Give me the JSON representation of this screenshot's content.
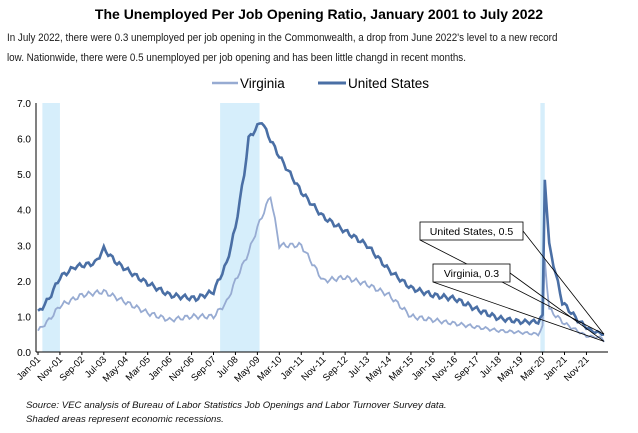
{
  "chart_data": {
    "type": "line",
    "title": "The Unemployed Per Job Opening Ratio, January 2001 to July 2022",
    "subtitle_lines": [
      "In July 2022, there were 0.3 unemployed per job opening in the Commonwealth, a drop from June 2022's level to a new record",
      "low. Nationwide, there were  0.5 unemployed per job opening and has been little changd in recent months."
    ],
    "ylim": [
      0,
      7
    ],
    "yticks": [
      "0.0",
      "1.0",
      "2.0",
      "3.0",
      "4.0",
      "5.0",
      "6.0",
      "7.0"
    ],
    "xticks": [
      "Jan-01",
      "Nov-01",
      "Sep-02",
      "Jul-03",
      "May-04",
      "Mar-05",
      "Jan-06",
      "Nov-06",
      "Sep-07",
      "Jul-08",
      "May-09",
      "Mar-10",
      "Jan-11",
      "Nov-11",
      "Sep-12",
      "Jul-13",
      "May-14",
      "Mar-15",
      "Jan-16",
      "Nov-16",
      "Sep-17",
      "Jul-18",
      "May-19",
      "Mar-20",
      "Jan-21",
      "Nov-21"
    ],
    "xrange": [
      "2001-01",
      "2022-07"
    ],
    "recessions": [
      [
        "2001-03",
        "2001-11"
      ],
      [
        "2007-12",
        "2009-06"
      ],
      [
        "2020-02",
        "2020-04"
      ]
    ],
    "recession_color": "#d6eefb",
    "series": [
      {
        "name": "Virginia",
        "color": "#97abd2",
        "points": [
          [
            "2001-01",
            0.6
          ],
          [
            "2001-06",
            0.9
          ],
          [
            "2001-11",
            1.3
          ],
          [
            "2002-09",
            1.6
          ],
          [
            "2003-07",
            1.7
          ],
          [
            "2004-05",
            1.4
          ],
          [
            "2005-03",
            1.1
          ],
          [
            "2006-01",
            0.9
          ],
          [
            "2006-11",
            1.0
          ],
          [
            "2007-09",
            1.0
          ],
          [
            "2008-03",
            1.4
          ],
          [
            "2008-07",
            2.0
          ],
          [
            "2009-01",
            2.8
          ],
          [
            "2009-05",
            3.5
          ],
          [
            "2009-11",
            4.4
          ],
          [
            "2010-03",
            3.0
          ],
          [
            "2011-01",
            3.0
          ],
          [
            "2011-11",
            2.0
          ],
          [
            "2012-09",
            2.1
          ],
          [
            "2013-07",
            1.9
          ],
          [
            "2014-05",
            1.6
          ],
          [
            "2015-03",
            1.0
          ],
          [
            "2016-01",
            0.9
          ],
          [
            "2016-11",
            0.8
          ],
          [
            "2017-09",
            0.7
          ],
          [
            "2018-07",
            0.6
          ],
          [
            "2019-05",
            0.55
          ],
          [
            "2020-01",
            0.5
          ],
          [
            "2020-03",
            0.7
          ],
          [
            "2020-04",
            2.6
          ],
          [
            "2020-06",
            1.2
          ],
          [
            "2021-01",
            0.8
          ],
          [
            "2021-11",
            0.45
          ],
          [
            "2022-06",
            0.4
          ],
          [
            "2022-07",
            0.3
          ]
        ]
      },
      {
        "name": "United States",
        "color": "#4a6fa5",
        "points": [
          [
            "2001-01",
            1.1
          ],
          [
            "2001-06",
            1.5
          ],
          [
            "2001-11",
            2.1
          ],
          [
            "2002-06",
            2.4
          ],
          [
            "2003-03",
            2.5
          ],
          [
            "2003-07",
            2.9
          ],
          [
            "2004-01",
            2.5
          ],
          [
            "2005-01",
            2.0
          ],
          [
            "2006-01",
            1.6
          ],
          [
            "2007-01",
            1.5
          ],
          [
            "2007-09",
            1.7
          ],
          [
            "2008-03",
            2.5
          ],
          [
            "2008-07",
            3.5
          ],
          [
            "2008-11",
            5.0
          ],
          [
            "2009-01",
            6.0
          ],
          [
            "2009-07",
            6.5
          ],
          [
            "2009-09",
            6.2
          ],
          [
            "2010-03",
            5.5
          ],
          [
            "2011-01",
            4.5
          ],
          [
            "2011-11",
            3.8
          ],
          [
            "2012-09",
            3.4
          ],
          [
            "2013-07",
            3.0
          ],
          [
            "2014-05",
            2.3
          ],
          [
            "2015-03",
            1.8
          ],
          [
            "2016-01",
            1.6
          ],
          [
            "2016-11",
            1.5
          ],
          [
            "2017-09",
            1.2
          ],
          [
            "2018-07",
            0.95
          ],
          [
            "2019-05",
            0.85
          ],
          [
            "2020-01",
            0.85
          ],
          [
            "2020-03",
            1.0
          ],
          [
            "2020-04",
            4.9
          ],
          [
            "2020-06",
            3.0
          ],
          [
            "2020-12",
            1.4
          ],
          [
            "2021-07",
            0.9
          ],
          [
            "2022-01",
            0.6
          ],
          [
            "2022-07",
            0.5
          ]
        ]
      }
    ],
    "annotations": [
      {
        "text": "United States, 0.5",
        "series": "United States"
      },
      {
        "text": "Virginia, 0.3",
        "series": "Virginia"
      }
    ],
    "legend": "top-center",
    "source_lines": [
      "Source: VEC analysis of Bureau of Labor Statistics Job Openings and Labor Turnover Survey data.",
      "Shaded areas represent economic recessions."
    ]
  }
}
